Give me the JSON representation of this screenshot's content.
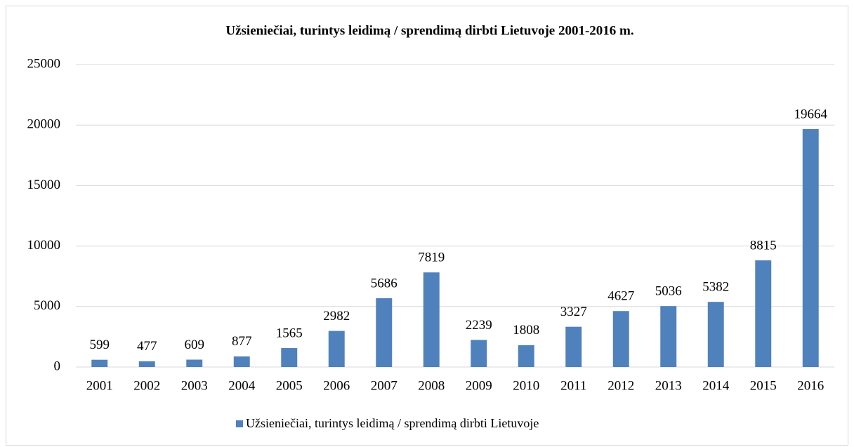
{
  "chart_data": {
    "type": "bar",
    "title": "Užsieniečiai, turintys leidimą / sprendimą dirbti Lietuvoje 2001-2016 m.",
    "categories": [
      "2001",
      "2002",
      "2003",
      "2004",
      "2005",
      "2006",
      "2007",
      "2008",
      "2009",
      "2010",
      "2011",
      "2012",
      "2013",
      "2014",
      "2015",
      "2016"
    ],
    "series": [
      {
        "name": "Užsieniečiai, turintys leidimą / sprendimą dirbti Lietuvoje",
        "color": "#4f81bd",
        "values": [
          599,
          477,
          609,
          877,
          1565,
          2982,
          5686,
          7819,
          2239,
          1808,
          3327,
          4627,
          5036,
          5382,
          8815,
          19664
        ]
      }
    ],
    "ylim": [
      0,
      25000
    ],
    "yticks": [
      0,
      5000,
      10000,
      15000,
      20000,
      25000
    ],
    "grid": true,
    "legend": "bottom"
  }
}
